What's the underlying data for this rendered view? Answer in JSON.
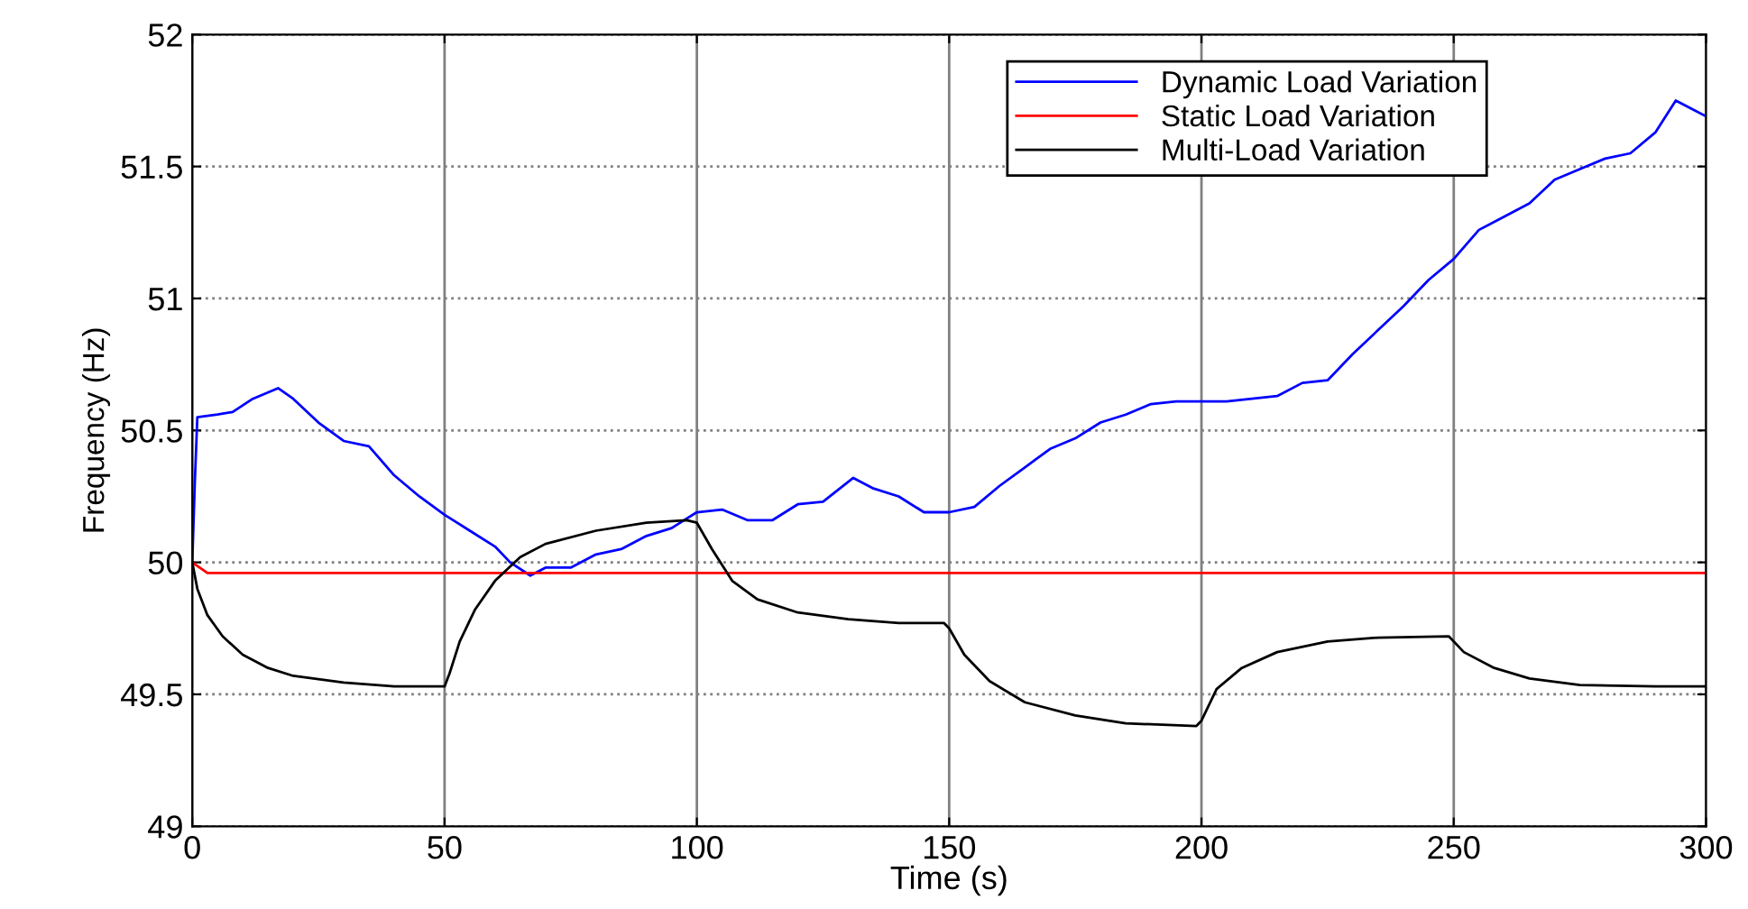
{
  "chart_data": {
    "type": "line",
    "xlabel": "Time (s)",
    "ylabel": "Frequency (Hz)",
    "xlim": [
      0,
      300
    ],
    "xticks": [
      0,
      50,
      100,
      150,
      200,
      250,
      300
    ],
    "ylim": [
      49,
      52
    ],
    "yticks": [
      49,
      49.5,
      50,
      50.5,
      51,
      51.5,
      52
    ],
    "grid": true,
    "legend": "top right",
    "line_style": "solid",
    "marker": "none",
    "series": [
      {
        "name": "Dynamic Load Variation",
        "color": "#0000ff",
        "x": [
          0,
          0.5,
          1,
          5,
          8,
          12,
          17,
          20,
          25,
          30,
          35,
          40,
          45,
          50,
          55,
          60,
          63,
          67,
          70,
          75,
          80,
          85,
          90,
          95,
          100,
          105,
          110,
          115,
          120,
          125,
          131,
          135,
          140,
          145,
          150,
          155,
          160,
          165,
          170,
          175,
          180,
          185,
          190,
          195,
          200,
          205,
          210,
          215,
          220,
          225,
          230,
          235,
          240,
          245,
          250,
          255,
          260,
          265,
          270,
          275,
          280,
          285,
          290,
          294,
          297,
          300
        ],
        "values": [
          50.0,
          50.3,
          50.55,
          50.56,
          50.57,
          50.62,
          50.66,
          50.62,
          50.53,
          50.46,
          50.44,
          50.33,
          50.25,
          50.18,
          50.12,
          50.06,
          50.0,
          49.95,
          49.98,
          49.98,
          50.03,
          50.05,
          50.1,
          50.13,
          50.19,
          50.2,
          50.16,
          50.16,
          50.22,
          50.23,
          50.32,
          50.28,
          50.25,
          50.19,
          50.19,
          50.21,
          50.29,
          50.36,
          50.43,
          50.47,
          50.53,
          50.56,
          50.6,
          50.61,
          50.61,
          50.61,
          50.62,
          50.63,
          50.68,
          50.69,
          50.79,
          50.88,
          50.97,
          51.07,
          51.15,
          51.26,
          51.31,
          51.36,
          51.45,
          51.49,
          51.53,
          51.55,
          51.63,
          51.75,
          51.72,
          51.69
        ]
      },
      {
        "name": "Static Load Variation",
        "color": "#ff0000",
        "x": [
          0,
          3,
          300
        ],
        "values": [
          50.0,
          49.96,
          49.96
        ]
      },
      {
        "name": "Multi-Load Variation",
        "color": "#000000",
        "x": [
          0,
          1,
          3,
          6,
          10,
          15,
          20,
          30,
          40,
          50,
          51,
          53,
          56,
          60,
          65,
          70,
          80,
          90,
          98,
          100,
          103,
          107,
          112,
          120,
          130,
          140,
          149,
          150,
          153,
          158,
          165,
          175,
          185,
          199,
          200,
          203,
          208,
          215,
          225,
          235,
          249,
          252,
          258,
          265,
          275,
          290,
          300
        ],
        "values": [
          50.0,
          49.9,
          49.8,
          49.72,
          49.65,
          49.6,
          49.57,
          49.545,
          49.53,
          49.53,
          49.58,
          49.7,
          49.82,
          49.93,
          50.02,
          50.07,
          50.12,
          50.15,
          50.16,
          50.15,
          50.05,
          49.93,
          49.86,
          49.81,
          49.785,
          49.77,
          49.77,
          49.75,
          49.65,
          49.55,
          49.47,
          49.42,
          49.39,
          49.38,
          49.4,
          49.52,
          49.6,
          49.66,
          49.7,
          49.715,
          49.72,
          49.66,
          49.6,
          49.56,
          49.535,
          49.53,
          49.53
        ]
      }
    ]
  }
}
